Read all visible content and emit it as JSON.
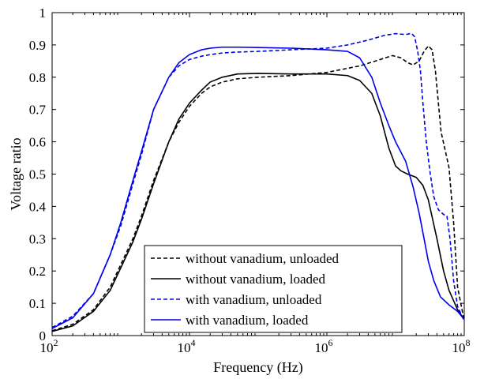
{
  "chart_data": {
    "type": "line",
    "title": "",
    "xlabel": "Frequency (Hz)",
    "ylabel": "Voltage ratio",
    "xscale": "log",
    "xlim": [
      100,
      100000000
    ],
    "ylim": [
      0,
      1
    ],
    "grid": false,
    "legend_position": "bottom-center",
    "x_ticks": [
      {
        "value": 100,
        "base": "10",
        "exp": "2"
      },
      {
        "value": 10000,
        "base": "10",
        "exp": "4"
      },
      {
        "value": 1000000,
        "base": "10",
        "exp": "6"
      },
      {
        "value": 100000000,
        "base": "10",
        "exp": "8"
      }
    ],
    "y_ticks": [
      "0",
      "0.1",
      "0.2",
      "0.3",
      "0.4",
      "0.5",
      "0.6",
      "0.7",
      "0.8",
      "0.9",
      "1"
    ],
    "series": [
      {
        "name": "without vanadium, unloaded",
        "color": "#000000",
        "dash": "dashed",
        "points": [
          [
            100,
            0.015
          ],
          [
            200,
            0.035
          ],
          [
            400,
            0.08
          ],
          [
            700,
            0.15
          ],
          [
            1000,
            0.22
          ],
          [
            1500,
            0.3
          ],
          [
            2000,
            0.37
          ],
          [
            3000,
            0.48
          ],
          [
            5000,
            0.6
          ],
          [
            7000,
            0.66
          ],
          [
            10000,
            0.71
          ],
          [
            15000,
            0.75
          ],
          [
            20000,
            0.77
          ],
          [
            30000,
            0.785
          ],
          [
            50000,
            0.795
          ],
          [
            100000,
            0.8
          ],
          [
            300000,
            0.805
          ],
          [
            1000000,
            0.815
          ],
          [
            3000000,
            0.835
          ],
          [
            6000000,
            0.855
          ],
          [
            9000000,
            0.867
          ],
          [
            12000000,
            0.86
          ],
          [
            15000000,
            0.845
          ],
          [
            18000000,
            0.838
          ],
          [
            22000000,
            0.85
          ],
          [
            26000000,
            0.88
          ],
          [
            30000000,
            0.897
          ],
          [
            34000000,
            0.885
          ],
          [
            38000000,
            0.82
          ],
          [
            42000000,
            0.72
          ],
          [
            46000000,
            0.63
          ],
          [
            52000000,
            0.58
          ],
          [
            60000000,
            0.52
          ],
          [
            70000000,
            0.35
          ],
          [
            80000000,
            0.15
          ],
          [
            100000000,
            0.045
          ]
        ]
      },
      {
        "name": "without vanadium, loaded",
        "color": "#000000",
        "dash": "solid",
        "points": [
          [
            100,
            0.013
          ],
          [
            200,
            0.03
          ],
          [
            400,
            0.075
          ],
          [
            700,
            0.14
          ],
          [
            1000,
            0.21
          ],
          [
            1500,
            0.29
          ],
          [
            2000,
            0.36
          ],
          [
            3000,
            0.47
          ],
          [
            5000,
            0.6
          ],
          [
            7000,
            0.67
          ],
          [
            10000,
            0.72
          ],
          [
            15000,
            0.76
          ],
          [
            20000,
            0.785
          ],
          [
            30000,
            0.8
          ],
          [
            50000,
            0.81
          ],
          [
            100000,
            0.812
          ],
          [
            300000,
            0.81
          ],
          [
            1000000,
            0.81
          ],
          [
            2000000,
            0.805
          ],
          [
            3000000,
            0.79
          ],
          [
            4500000,
            0.75
          ],
          [
            6000000,
            0.68
          ],
          [
            8000000,
            0.58
          ],
          [
            10000000,
            0.525
          ],
          [
            12000000,
            0.51
          ],
          [
            15000000,
            0.5
          ],
          [
            20000000,
            0.49
          ],
          [
            25000000,
            0.465
          ],
          [
            30000000,
            0.42
          ],
          [
            40000000,
            0.3
          ],
          [
            50000000,
            0.2
          ],
          [
            60000000,
            0.14
          ],
          [
            80000000,
            0.08
          ],
          [
            100000000,
            0.05
          ]
        ]
      },
      {
        "name": "with vanadium, unloaded",
        "color": "#0000ee",
        "dash": "dashed",
        "points": [
          [
            100,
            0.025
          ],
          [
            200,
            0.06
          ],
          [
            400,
            0.13
          ],
          [
            700,
            0.25
          ],
          [
            1000,
            0.34
          ],
          [
            1500,
            0.47
          ],
          [
            2000,
            0.56
          ],
          [
            3000,
            0.7
          ],
          [
            5000,
            0.8
          ],
          [
            7000,
            0.835
          ],
          [
            10000,
            0.855
          ],
          [
            15000,
            0.865
          ],
          [
            20000,
            0.87
          ],
          [
            30000,
            0.875
          ],
          [
            50000,
            0.878
          ],
          [
            100000,
            0.88
          ],
          [
            300000,
            0.885
          ],
          [
            1000000,
            0.89
          ],
          [
            2000000,
            0.9
          ],
          [
            4000000,
            0.915
          ],
          [
            7000000,
            0.93
          ],
          [
            10000000,
            0.935
          ],
          [
            14000000,
            0.932
          ],
          [
            17000000,
            0.936
          ],
          [
            19000000,
            0.925
          ],
          [
            21000000,
            0.88
          ],
          [
            23000000,
            0.82
          ],
          [
            25000000,
            0.72
          ],
          [
            28000000,
            0.6
          ],
          [
            32000000,
            0.5
          ],
          [
            36000000,
            0.43
          ],
          [
            42000000,
            0.39
          ],
          [
            50000000,
            0.375
          ],
          [
            56000000,
            0.37
          ],
          [
            62000000,
            0.3
          ],
          [
            70000000,
            0.17
          ],
          [
            80000000,
            0.09
          ],
          [
            100000000,
            0.045
          ]
        ]
      },
      {
        "name": "with vanadium, loaded",
        "color": "#0000ee",
        "dash": "solid",
        "points": [
          [
            100,
            0.022
          ],
          [
            200,
            0.055
          ],
          [
            400,
            0.13
          ],
          [
            700,
            0.25
          ],
          [
            1000,
            0.35
          ],
          [
            1500,
            0.48
          ],
          [
            2000,
            0.57
          ],
          [
            3000,
            0.7
          ],
          [
            5000,
            0.8
          ],
          [
            7000,
            0.845
          ],
          [
            10000,
            0.87
          ],
          [
            15000,
            0.885
          ],
          [
            20000,
            0.89
          ],
          [
            30000,
            0.893
          ],
          [
            50000,
            0.893
          ],
          [
            100000,
            0.892
          ],
          [
            300000,
            0.89
          ],
          [
            1000000,
            0.885
          ],
          [
            2000000,
            0.88
          ],
          [
            3000000,
            0.86
          ],
          [
            4500000,
            0.8
          ],
          [
            6000000,
            0.72
          ],
          [
            8000000,
            0.65
          ],
          [
            10000000,
            0.6
          ],
          [
            14000000,
            0.54
          ],
          [
            18000000,
            0.46
          ],
          [
            22000000,
            0.38
          ],
          [
            26000000,
            0.3
          ],
          [
            30000000,
            0.23
          ],
          [
            36000000,
            0.17
          ],
          [
            45000000,
            0.12
          ],
          [
            60000000,
            0.095
          ],
          [
            80000000,
            0.075
          ],
          [
            100000000,
            0.05
          ]
        ]
      }
    ]
  }
}
